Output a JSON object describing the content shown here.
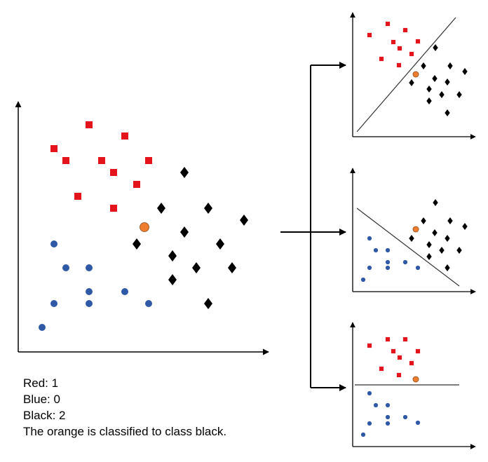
{
  "legend": {
    "red_vote": "Red: 1",
    "blue_vote": "Blue: 0",
    "black_vote": "Black: 2",
    "conclusion": "The orange is classified to class black."
  },
  "colors": {
    "red": "#e3141c",
    "blue": "#2f58a7",
    "black": "#000000",
    "orange": "#ee7d2f",
    "axis": "#000000",
    "boundary": "#333333"
  },
  "main_plot": {
    "red_squares": [
      [
        127,
        178
      ],
      [
        178,
        194
      ],
      [
        77,
        212
      ],
      [
        94,
        229
      ],
      [
        145,
        229
      ],
      [
        212,
        229
      ],
      [
        162,
        246
      ],
      [
        195,
        263
      ],
      [
        111,
        280
      ],
      [
        162,
        297
      ]
    ],
    "blue_circles": [
      [
        77,
        348
      ],
      [
        94,
        382
      ],
      [
        127,
        382
      ],
      [
        127,
        416
      ],
      [
        178,
        416
      ],
      [
        77,
        433
      ],
      [
        127,
        433
      ],
      [
        212,
        433
      ],
      [
        60,
        467
      ]
    ],
    "black_diamonds": [
      [
        263,
        246
      ],
      [
        230,
        297
      ],
      [
        297,
        297
      ],
      [
        348,
        314
      ],
      [
        263,
        331
      ],
      [
        195,
        348
      ],
      [
        314,
        348
      ],
      [
        246,
        365
      ],
      [
        280,
        382
      ],
      [
        331,
        382
      ],
      [
        246,
        399
      ],
      [
        297,
        433
      ]
    ],
    "orange_point": [
      206,
      324
    ]
  },
  "sub_plots": [
    {
      "name": "red-vs-black",
      "red_squares": [
        [
          527,
          50
        ],
        [
          553,
          34
        ],
        [
          578,
          43
        ],
        [
          561,
          60
        ],
        [
          596,
          59
        ],
        [
          544,
          84
        ],
        [
          570,
          69
        ],
        [
          587,
          77
        ],
        [
          569,
          93
        ]
      ],
      "blue_circles": [],
      "black_diamonds": [
        [
          621,
          68
        ],
        [
          604,
          94
        ],
        [
          642,
          94
        ],
        [
          663,
          102
        ],
        [
          620,
          112
        ],
        [
          587,
          118
        ],
        [
          638,
          117
        ],
        [
          612,
          127
        ],
        [
          630,
          135
        ],
        [
          655,
          135
        ],
        [
          612,
          144
        ],
        [
          638,
          161
        ]
      ],
      "orange_point": [
        593,
        106
      ]
    },
    {
      "name": "black-vs-blue",
      "red_squares": [],
      "blue_circles": [
        [
          527,
          340
        ],
        [
          536,
          357
        ],
        [
          553,
          357
        ],
        [
          553,
          374
        ],
        [
          578,
          374
        ],
        [
          527,
          382
        ],
        [
          553,
          382
        ],
        [
          596,
          382
        ],
        [
          518,
          399
        ]
      ],
      "black_diamonds": [
        [
          621,
          289
        ],
        [
          604,
          315
        ],
        [
          642,
          315
        ],
        [
          663,
          323
        ],
        [
          620,
          332
        ],
        [
          587,
          340
        ],
        [
          638,
          340
        ],
        [
          612,
          349
        ],
        [
          630,
          357
        ],
        [
          655,
          357
        ],
        [
          612,
          366
        ],
        [
          638,
          382
        ]
      ],
      "orange_point": [
        593,
        327
      ]
    },
    {
      "name": "red-vs-blue",
      "red_squares": [
        [
          527,
          493
        ],
        [
          553,
          484
        ],
        [
          578,
          484
        ],
        [
          561,
          501
        ],
        [
          596,
          501
        ],
        [
          544,
          526
        ],
        [
          570,
          510
        ],
        [
          587,
          518
        ],
        [
          569,
          535
        ]
      ],
      "blue_circles": [
        [
          527,
          561
        ],
        [
          536,
          578
        ],
        [
          553,
          578
        ],
        [
          553,
          595
        ],
        [
          578,
          595
        ],
        [
          527,
          604
        ],
        [
          553,
          604
        ],
        [
          596,
          603
        ],
        [
          518,
          620
        ]
      ],
      "black_diamonds": [],
      "orange_point": [
        593,
        541
      ]
    }
  ]
}
